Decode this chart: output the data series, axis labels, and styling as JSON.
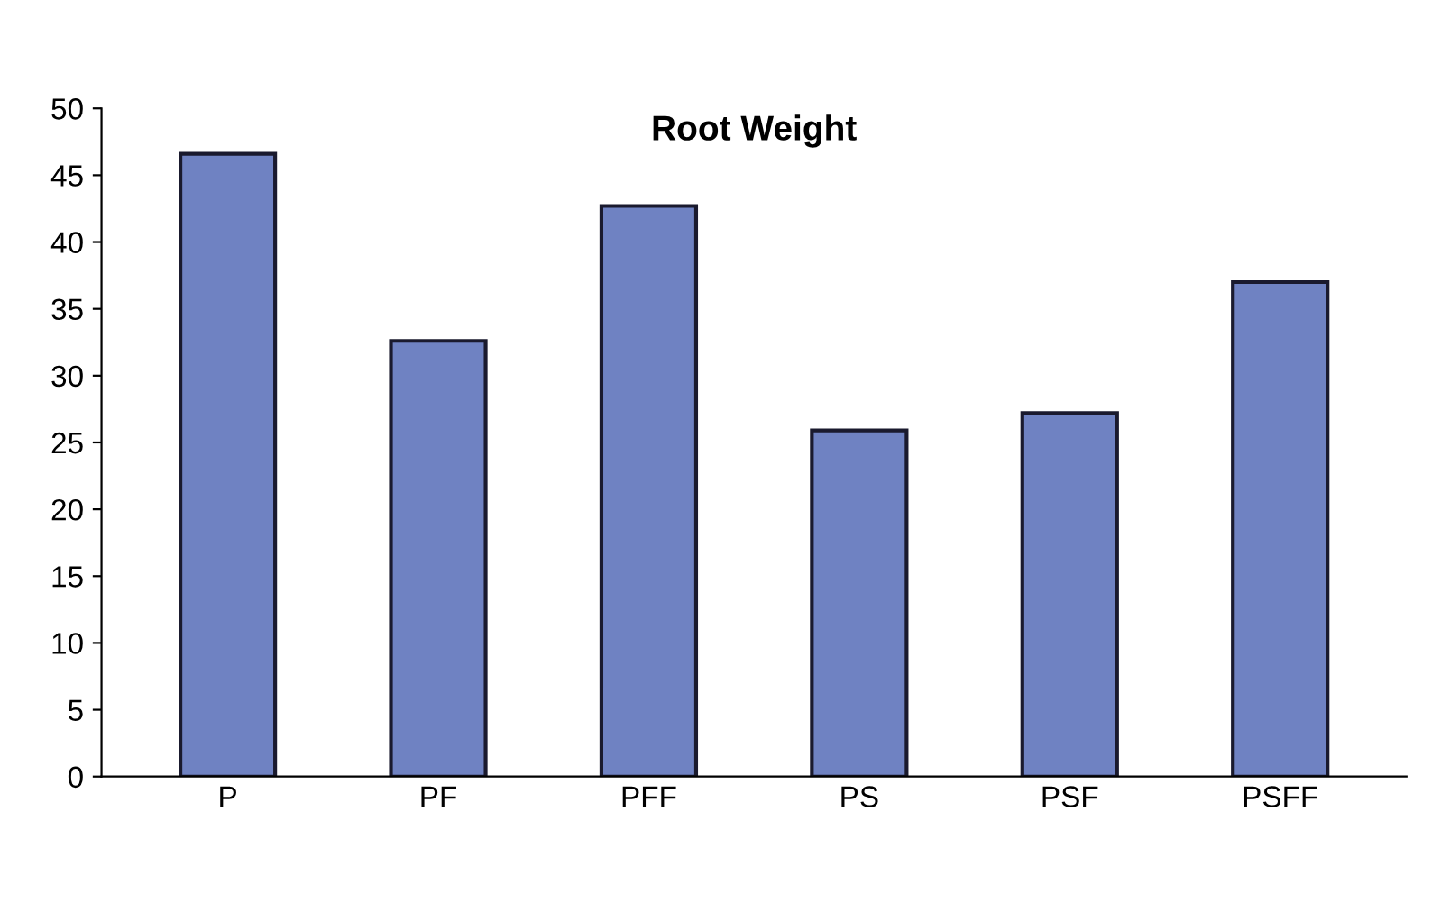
{
  "chart_data": {
    "type": "bar",
    "title": "Root Weight",
    "categories": [
      "P",
      "PF",
      "PFF",
      "PS",
      "PSF",
      "PSFF"
    ],
    "values": [
      46.6,
      32.6,
      42.7,
      25.9,
      27.2,
      37.0
    ],
    "color": "#6f82c2",
    "ylim": [
      0,
      50
    ],
    "yticks": [
      0,
      5,
      10,
      15,
      20,
      25,
      30,
      35,
      40,
      45,
      50
    ],
    "grid": false,
    "legend": false
  }
}
